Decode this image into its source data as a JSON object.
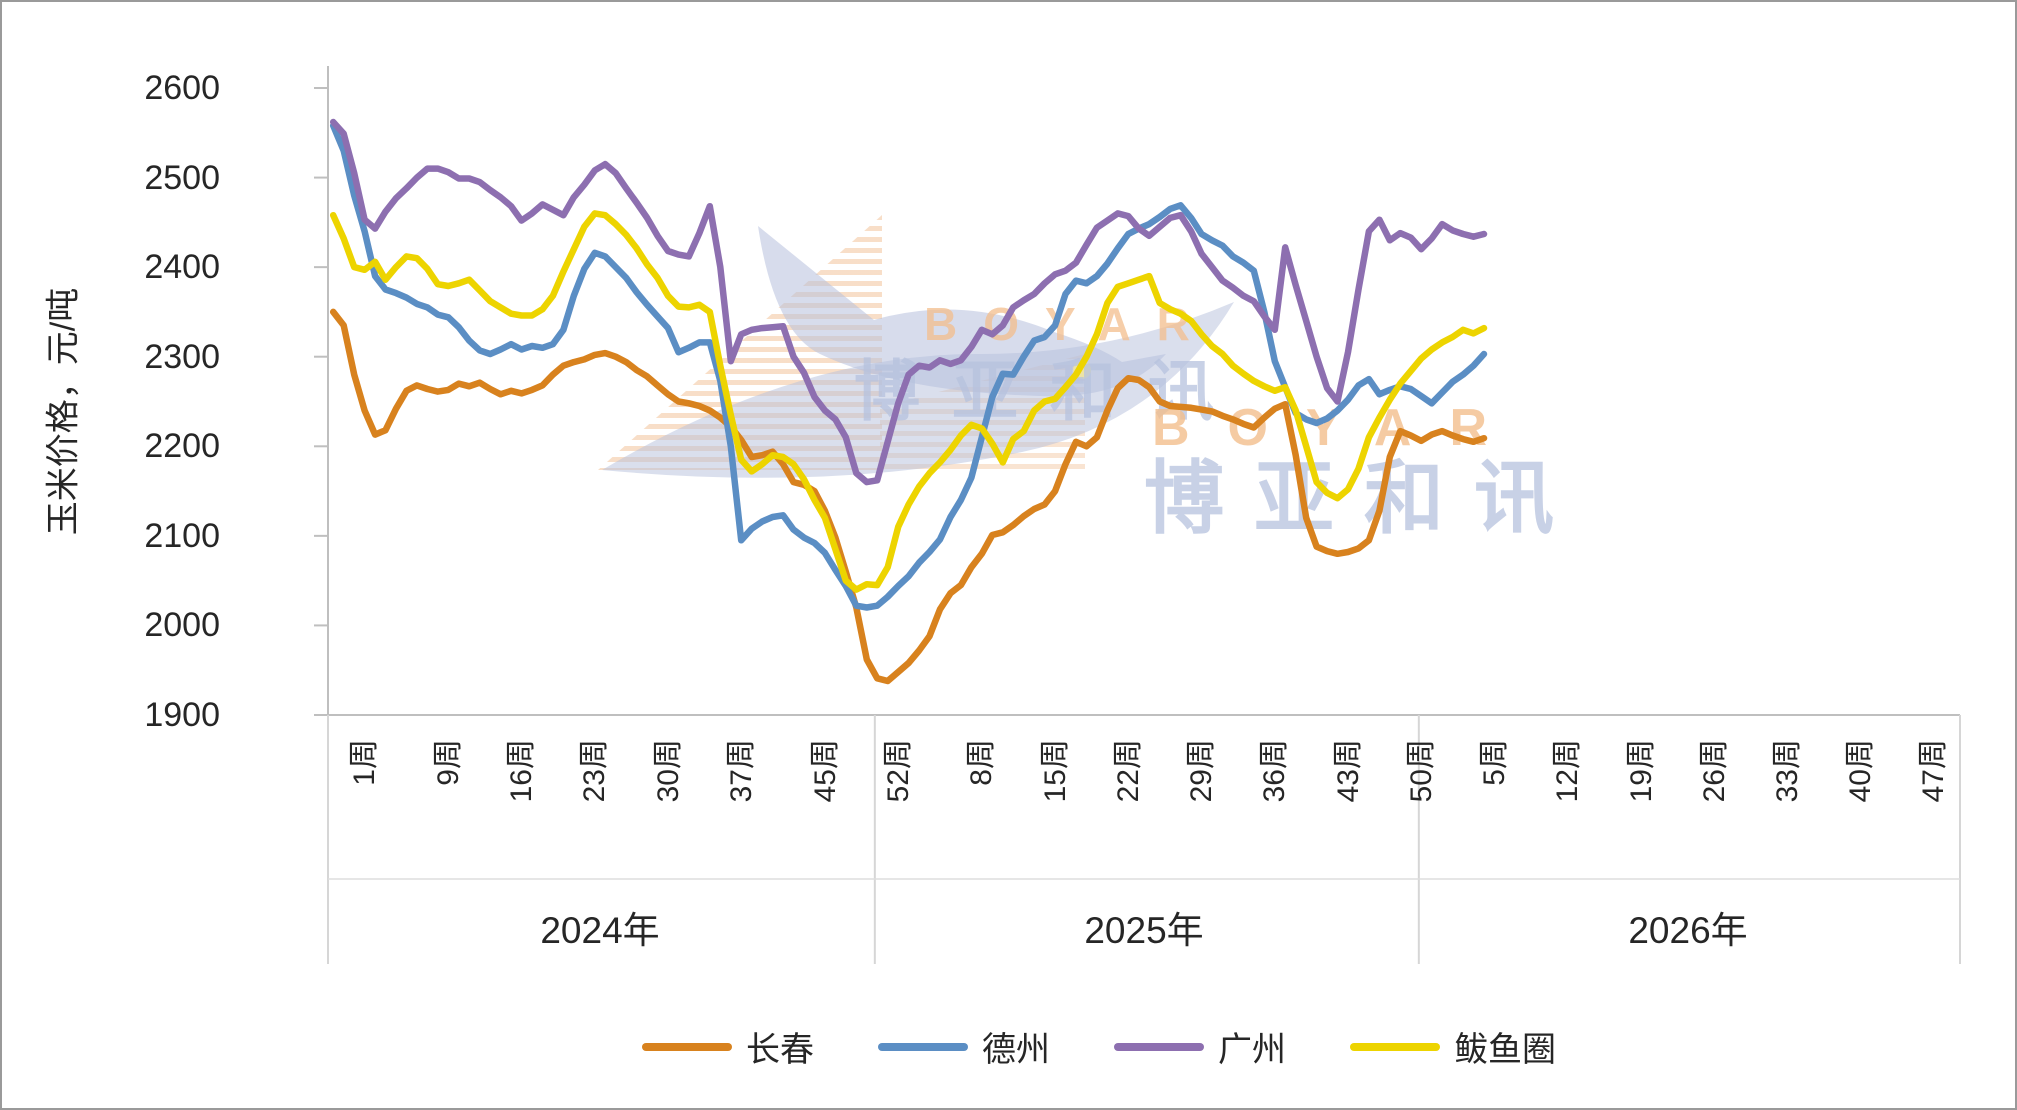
{
  "watermark": {
    "latin_text": "BOYAR",
    "cn_text": "博亚和讯",
    "bird_icon_color": "#b6c0dc",
    "hatch_color": "#f2c49b"
  },
  "chart_data": {
    "type": "line",
    "title": "",
    "ylabel": "玉米价格，元/吨",
    "xlabel": "",
    "ylim": [
      1900,
      2600
    ],
    "ytick_step": 100,
    "ytick_labels": [
      "1900",
      "2000",
      "2100",
      "2200",
      "2300",
      "2400",
      "2500",
      "2600"
    ],
    "grid": "off",
    "legend_position": "bottom",
    "axis_color": "#bfbfbf",
    "divider_color": "#d6d6d6",
    "weeks_per_year": 52,
    "last_point_global_week": 111,
    "week_tick_labels": [
      {
        "label": "1周",
        "global_week": 0
      },
      {
        "label": "9周",
        "global_week": 8
      },
      {
        "label": "16周",
        "global_week": 15
      },
      {
        "label": "23周",
        "global_week": 22
      },
      {
        "label": "30周",
        "global_week": 29
      },
      {
        "label": "37周",
        "global_week": 36
      },
      {
        "label": "45周",
        "global_week": 44
      },
      {
        "label": "52周",
        "global_week": 51
      },
      {
        "label": "8周",
        "global_week": 59
      },
      {
        "label": "15周",
        "global_week": 66
      },
      {
        "label": "22周",
        "global_week": 73
      },
      {
        "label": "29周",
        "global_week": 80
      },
      {
        "label": "36周",
        "global_week": 87
      },
      {
        "label": "43周",
        "global_week": 94
      },
      {
        "label": "50周",
        "global_week": 101
      },
      {
        "label": "5周",
        "global_week": 108
      },
      {
        "label": "12周",
        "global_week": 115
      },
      {
        "label": "19周",
        "global_week": 122
      },
      {
        "label": "26周",
        "global_week": 129
      },
      {
        "label": "33周",
        "global_week": 136
      },
      {
        "label": "40周",
        "global_week": 143
      },
      {
        "label": "47周",
        "global_week": 150
      }
    ],
    "year_labels": [
      {
        "label": "2024年",
        "start_week": 0,
        "end_week": 52
      },
      {
        "label": "2025年",
        "start_week": 52,
        "end_week": 104
      },
      {
        "label": "2026年",
        "start_week": 104,
        "end_week": 156
      }
    ],
    "series": [
      {
        "name": "长春",
        "color": "#d8821e",
        "values": [
          2350,
          2335,
          2280,
          2240,
          2213,
          2218,
          2242,
          2262,
          2268,
          2264,
          2261,
          2263,
          2270,
          2267,
          2271,
          2264,
          2258,
          2262,
          2259,
          2263,
          2268,
          2280,
          2290,
          2294,
          2297,
          2302,
          2304,
          2300,
          2294,
          2285,
          2278,
          2268,
          2258,
          2250,
          2248,
          2245,
          2240,
          2232,
          2222,
          2207,
          2188,
          2190,
          2194,
          2180,
          2160,
          2157,
          2150,
          2128,
          2098,
          2060,
          2020,
          1962,
          1941,
          1938,
          1948,
          1958,
          1972,
          1988,
          2018,
          2036,
          2045,
          2065,
          2080,
          2101,
          2104,
          2112,
          2122,
          2130,
          2135,
          2150,
          2180,
          2205,
          2200,
          2210,
          2240,
          2265,
          2276,
          2274,
          2266,
          2250,
          2245,
          2244,
          2243,
          2241,
          2239,
          2234,
          2230,
          2225,
          2221,
          2232,
          2242,
          2247,
          2190,
          2120,
          2088,
          2083,
          2080,
          2082,
          2086,
          2095,
          2128,
          2188,
          2217,
          2212,
          2206,
          2213,
          2217,
          2212,
          2208,
          2205,
          2209
        ]
      },
      {
        "name": "德州",
        "color": "#5b8ec4",
        "values": [
          2558,
          2530,
          2480,
          2440,
          2390,
          2375,
          2371,
          2366,
          2359,
          2355,
          2347,
          2344,
          2333,
          2318,
          2307,
          2303,
          2308,
          2314,
          2308,
          2312,
          2310,
          2314,
          2330,
          2368,
          2398,
          2416,
          2412,
          2400,
          2388,
          2372,
          2358,
          2345,
          2332,
          2305,
          2310,
          2316,
          2316,
          2273,
          2200,
          2095,
          2108,
          2116,
          2121,
          2123,
          2107,
          2098,
          2092,
          2081,
          2062,
          2044,
          2022,
          2020,
          2022,
          2032,
          2044,
          2055,
          2070,
          2082,
          2096,
          2121,
          2140,
          2165,
          2210,
          2255,
          2281,
          2280,
          2300,
          2318,
          2322,
          2335,
          2370,
          2385,
          2382,
          2390,
          2404,
          2421,
          2437,
          2443,
          2448,
          2456,
          2465,
          2469,
          2455,
          2437,
          2430,
          2424,
          2412,
          2405,
          2396,
          2350,
          2295,
          2266,
          2237,
          2230,
          2226,
          2231,
          2240,
          2252,
          2268,
          2275,
          2258,
          2263,
          2267,
          2264,
          2256,
          2248,
          2260,
          2272,
          2280,
          2290,
          2303
        ]
      },
      {
        "name": "广州",
        "color": "#8d6fb0",
        "values": [
          2562,
          2549,
          2505,
          2453,
          2443,
          2462,
          2477,
          2488,
          2500,
          2510,
          2510,
          2506,
          2499,
          2499,
          2495,
          2486,
          2478,
          2468,
          2452,
          2460,
          2470,
          2464,
          2458,
          2478,
          2492,
          2508,
          2515,
          2505,
          2488,
          2472,
          2455,
          2435,
          2418,
          2414,
          2412,
          2438,
          2468,
          2400,
          2295,
          2325,
          2330,
          2332,
          2333,
          2334,
          2300,
          2282,
          2255,
          2240,
          2230,
          2210,
          2170,
          2160,
          2162,
          2205,
          2248,
          2280,
          2290,
          2288,
          2296,
          2292,
          2296,
          2311,
          2330,
          2325,
          2335,
          2355,
          2363,
          2370,
          2382,
          2392,
          2396,
          2405,
          2425,
          2444,
          2452,
          2460,
          2457,
          2443,
          2435,
          2445,
          2455,
          2458,
          2440,
          2415,
          2400,
          2385,
          2377,
          2368,
          2362,
          2345,
          2330,
          2422,
          2380,
          2340,
          2300,
          2265,
          2250,
          2305,
          2375,
          2440,
          2453,
          2430,
          2438,
          2433,
          2420,
          2432,
          2448,
          2441,
          2437,
          2434,
          2437
        ]
      },
      {
        "name": "鲅鱼圈",
        "color": "#edd400",
        "values": [
          2458,
          2432,
          2400,
          2397,
          2406,
          2386,
          2400,
          2412,
          2410,
          2398,
          2381,
          2379,
          2382,
          2386,
          2374,
          2362,
          2355,
          2348,
          2346,
          2346,
          2353,
          2368,
          2395,
          2420,
          2445,
          2460,
          2458,
          2448,
          2436,
          2421,
          2403,
          2388,
          2368,
          2356,
          2355,
          2358,
          2350,
          2290,
          2235,
          2185,
          2172,
          2180,
          2190,
          2188,
          2180,
          2163,
          2140,
          2120,
          2085,
          2050,
          2040,
          2046,
          2045,
          2065,
          2110,
          2135,
          2155,
          2170,
          2182,
          2196,
          2212,
          2224,
          2220,
          2203,
          2182,
          2208,
          2217,
          2240,
          2250,
          2253,
          2266,
          2280,
          2300,
          2325,
          2360,
          2378,
          2382,
          2386,
          2390,
          2360,
          2353,
          2348,
          2340,
          2325,
          2312,
          2303,
          2290,
          2281,
          2273,
          2267,
          2262,
          2266,
          2240,
          2200,
          2160,
          2148,
          2142,
          2152,
          2175,
          2210,
          2232,
          2252,
          2270,
          2284,
          2298,
          2308,
          2316,
          2322,
          2330,
          2326,
          2332
        ]
      }
    ]
  }
}
